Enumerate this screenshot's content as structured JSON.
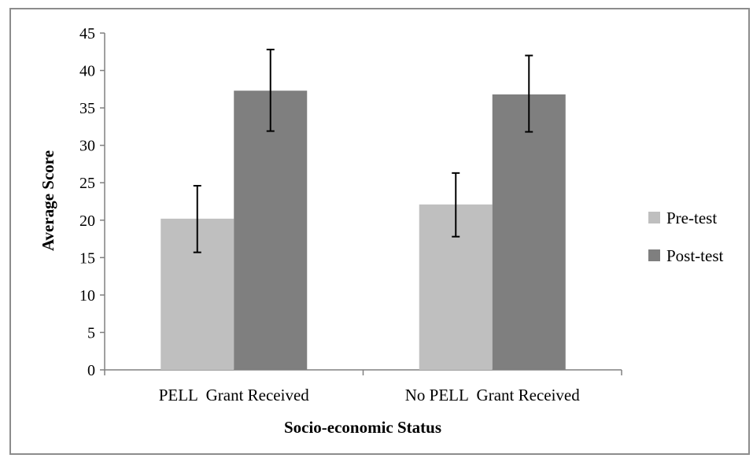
{
  "chart_data": {
    "type": "bar",
    "categories": [
      "PELL  Grant Received",
      "No PELL  Grant Received"
    ],
    "series": [
      {
        "name": "Pre-test",
        "values": [
          20.2,
          22.1
        ],
        "error_low": [
          15.7,
          17.8
        ],
        "error_high": [
          24.6,
          26.3
        ],
        "color": "#bfbfbf"
      },
      {
        "name": "Post-test",
        "values": [
          37.3,
          36.8
        ],
        "error_low": [
          31.9,
          31.8
        ],
        "error_high": [
          42.8,
          42.0
        ],
        "color": "#7f7f7f"
      }
    ],
    "xlabel": "Socio-economic Status",
    "ylabel": "Average Score",
    "ylim": [
      0,
      45
    ],
    "yticks": [
      0,
      5,
      10,
      15,
      20,
      25,
      30,
      35,
      40,
      45
    ],
    "grid": false,
    "legend_position": "right"
  }
}
